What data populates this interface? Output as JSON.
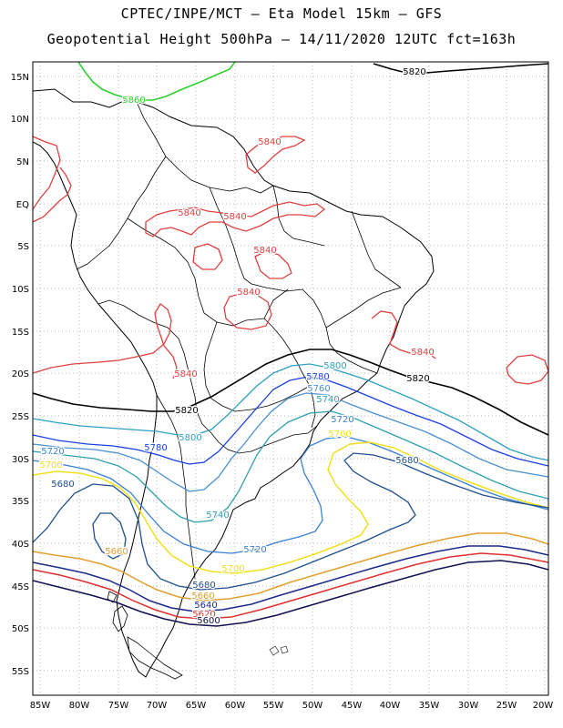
{
  "header": {
    "title_line1": "CPTEC/INPE/MCT –  Eta Model 15km – GFS",
    "title_line2": "Geopotential Height 500hPa – 14/11/2020 12UTC fct=163h"
  },
  "axes": {
    "lat_labels": [
      "15N",
      "10N",
      "5N",
      "EQ",
      "5S",
      "10S",
      "15S",
      "20S",
      "25S",
      "30S",
      "35S",
      "40S",
      "45S",
      "50S",
      "55S"
    ],
    "lon_labels": [
      "85W",
      "80W",
      "75W",
      "70W",
      "65W",
      "60W",
      "55W",
      "50W",
      "45W",
      "40W",
      "35W",
      "30W",
      "25W",
      "20W"
    ]
  },
  "colors": {
    "c5600": "#101050",
    "c5620": "#e03030",
    "c5640": "#1a2a8a",
    "c5660": "#e0a030",
    "c5680": "#1f4e8c",
    "c5700": "#f0e020",
    "c5720": "#3a7fd0",
    "c5740": "#2f9fb0",
    "c5760": "#4a8fd0",
    "c5780": "#1a40e0",
    "c5800": "#30a0c0",
    "c5820": "#000000",
    "c5840": "#e04040",
    "c5860": "#30d030"
  },
  "contour_labels": [
    {
      "id": "l5860",
      "text": "5860"
    },
    {
      "id": "l5820a",
      "text": "5820"
    },
    {
      "id": "l5840a",
      "text": "5840"
    },
    {
      "id": "l5840b",
      "text": "5840"
    },
    {
      "id": "l5840c",
      "text": "5840"
    },
    {
      "id": "l5840d",
      "text": "5840"
    },
    {
      "id": "l5840e",
      "text": "5840"
    },
    {
      "id": "l5840f",
      "text": "5840"
    },
    {
      "id": "l5840g",
      "text": "5840"
    },
    {
      "id": "l5820b",
      "text": "5820"
    },
    {
      "id": "l5820c",
      "text": "5820"
    },
    {
      "id": "l5800a",
      "text": "5800"
    },
    {
      "id": "l5780a",
      "text": "5780"
    },
    {
      "id": "l5760a",
      "text": "5760"
    },
    {
      "id": "l5740a",
      "text": "5740"
    },
    {
      "id": "l5720a",
      "text": "5720"
    },
    {
      "id": "l5700a",
      "text": "5700"
    },
    {
      "id": "l5800b",
      "text": "5800"
    },
    {
      "id": "l5780b",
      "text": "5780"
    },
    {
      "id": "l5720b",
      "text": "5720"
    },
    {
      "id": "l5700b",
      "text": "5700"
    },
    {
      "id": "l5680a",
      "text": "5680"
    },
    {
      "id": "l5680b",
      "text": "5680"
    },
    {
      "id": "l5660a",
      "text": "5660"
    },
    {
      "id": "l5740b",
      "text": "5740"
    },
    {
      "id": "l5720c",
      "text": "5720"
    },
    {
      "id": "l5700c",
      "text": "5700"
    },
    {
      "id": "l5680c",
      "text": "5680"
    },
    {
      "id": "l5660b",
      "text": "5660"
    },
    {
      "id": "l5640",
      "text": "5640"
    },
    {
      "id": "l5620",
      "text": "5620"
    },
    {
      "id": "l5600",
      "text": "5600"
    }
  ]
}
